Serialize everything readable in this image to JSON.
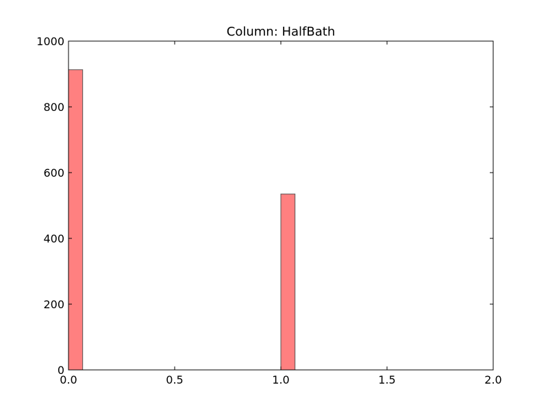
{
  "chart_data": {
    "type": "bar",
    "title": "Column: HalfBath",
    "xlabel": "",
    "ylabel": "",
    "xlim": [
      0,
      2
    ],
    "ylim": [
      0,
      1000
    ],
    "xticks": [
      0,
      0.5,
      1,
      1.5,
      2
    ],
    "xtick_labels": [
      "0.0",
      "0.5",
      "1.0",
      "1.5",
      "2.0"
    ],
    "yticks": [
      0,
      200,
      400,
      600,
      800,
      1000
    ],
    "ytick_labels": [
      "0",
      "200",
      "400",
      "600",
      "800",
      "1000"
    ],
    "bins": [
      {
        "x_start": 0.0,
        "x_end": 0.0667,
        "count": 913
      },
      {
        "x_start": 1.0,
        "x_end": 1.0667,
        "count": 535
      }
    ],
    "grid": false,
    "bar_color": "#ff8080",
    "bar_edge_color": "#555555"
  }
}
